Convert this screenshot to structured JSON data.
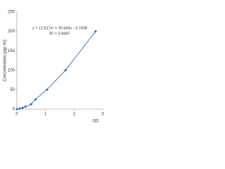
{
  "chart_data": {
    "type": "scatter",
    "x_label": "OD",
    "y_label": "Concentration (pg/ ml)",
    "annotations": [
      "y = 12.617x² + 39.684x - 3.7408",
      "R² = 0.9997"
    ],
    "series": [
      {
        "color": "#2e6fb7",
        "line": true,
        "x": [
          0,
          0.1,
          0.2,
          0.3,
          0.5,
          0.65,
          1.05,
          1.7,
          2.75
        ],
        "values": [
          0,
          1.5,
          3.1,
          6.25,
          12.5,
          25,
          50,
          100,
          200
        ]
      }
    ],
    "xlim": [
      0,
      3
    ],
    "xticks": [
      0,
      1,
      2,
      3
    ],
    "ylim": [
      0,
      250
    ],
    "yticks": [
      0,
      50,
      100,
      150,
      200,
      250
    ]
  }
}
